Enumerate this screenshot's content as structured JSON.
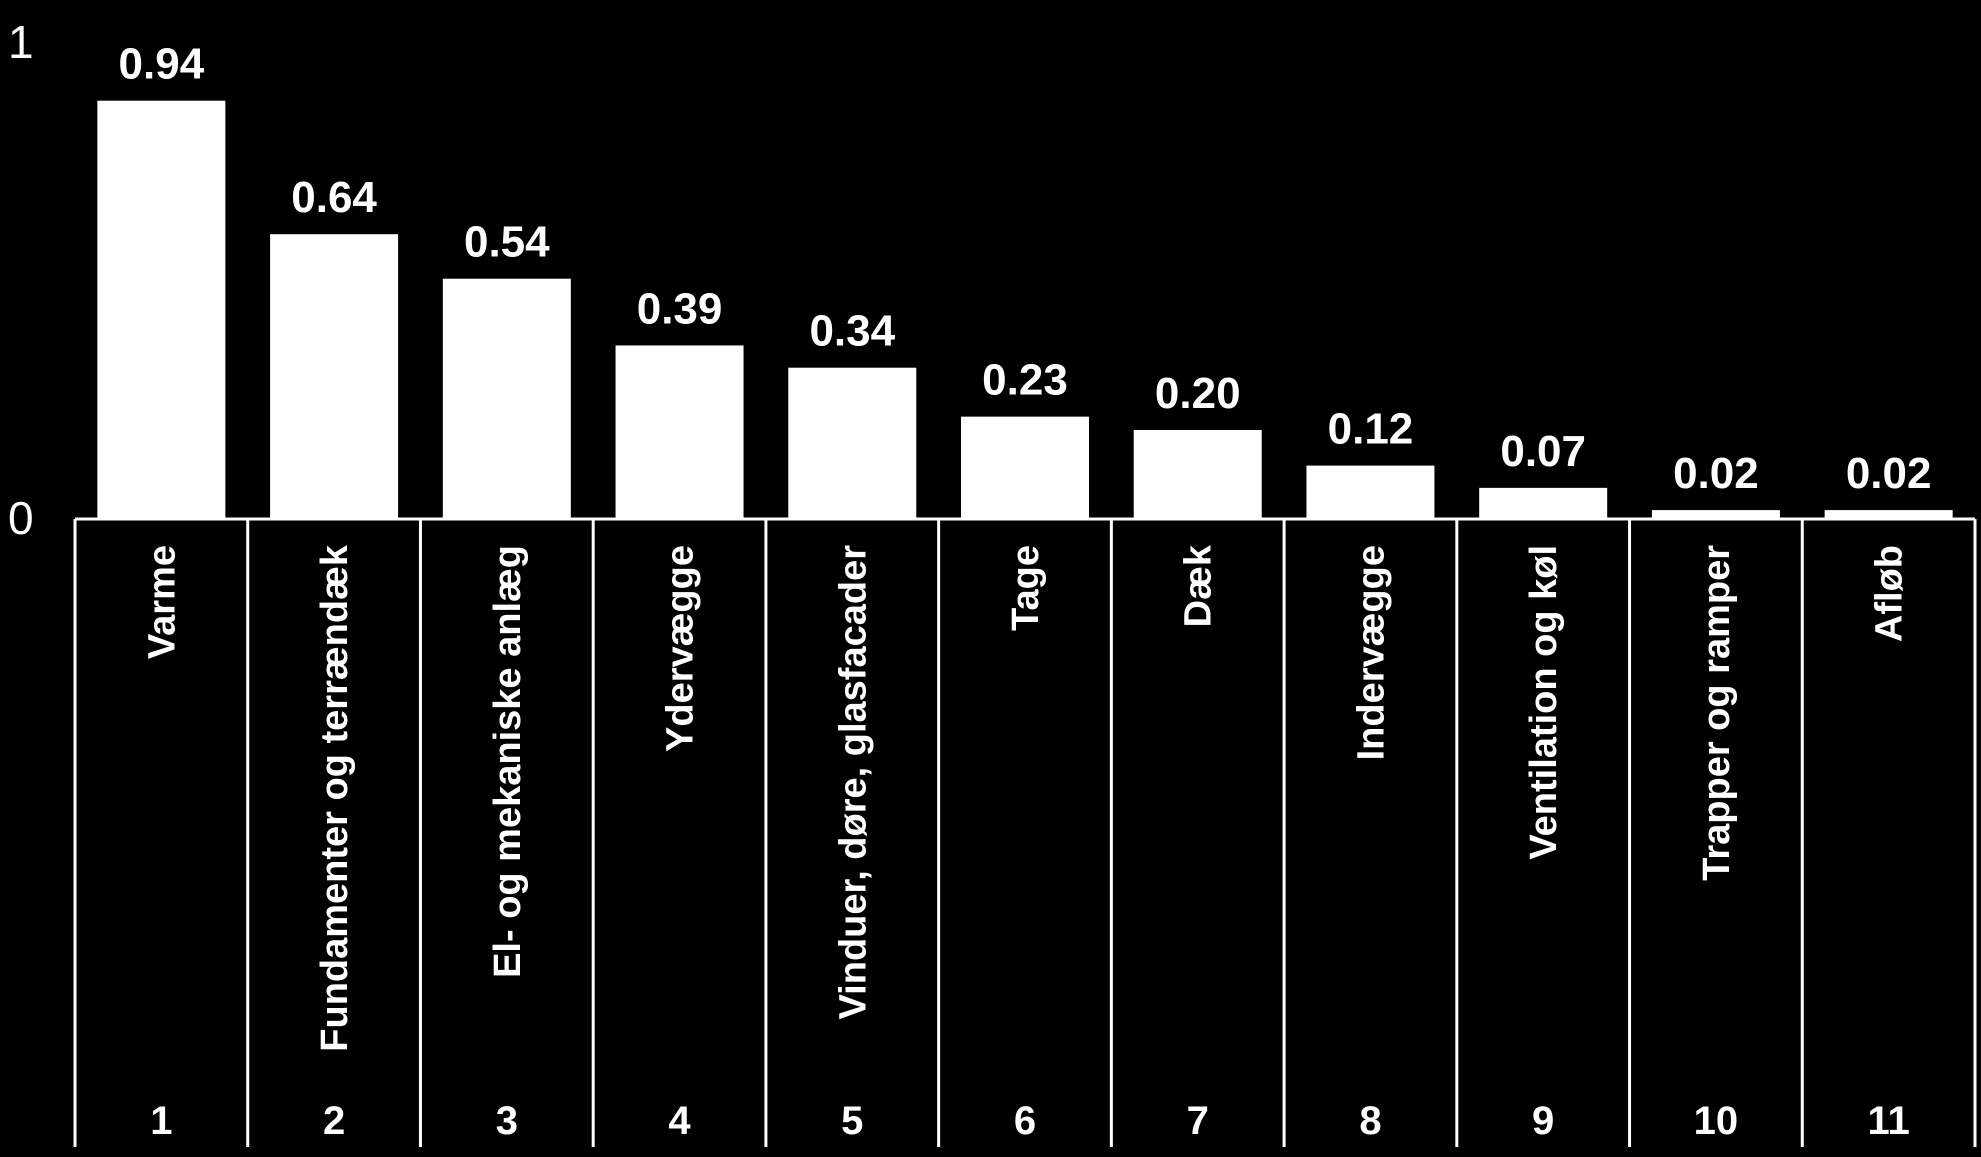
{
  "chart_data": {
    "type": "bar",
    "categories": [
      "Varme",
      "Fundamenter og terrændæk",
      "El- og mekaniske anlæg",
      "Ydervægge",
      "Vinduer, døre, glasfacader",
      "Tage",
      "Dæk",
      "Indervægge",
      "Ventilation og køl",
      "Trapper og ramper",
      "Afløb"
    ],
    "values": [
      0.94,
      0.64,
      0.54,
      0.39,
      0.34,
      0.23,
      0.2,
      0.12,
      0.07,
      0.02,
      0.02
    ],
    "data_labels": [
      "0.94",
      "0.64",
      "0.54",
      "0.39",
      "0.34",
      "0.23",
      "0.20",
      "0.12",
      "0.07",
      "0.02",
      "0.02"
    ],
    "ranks": [
      "1",
      "2",
      "3",
      "4",
      "5",
      "6",
      "7",
      "8",
      "9",
      "10",
      "11"
    ],
    "y_ticks": [
      "0",
      "1"
    ],
    "ylim": [
      0,
      1
    ],
    "grid": false,
    "title": "",
    "xlabel": "",
    "ylabel": "",
    "colors": {
      "background": "#000000",
      "bar": "#ffffff",
      "text": "#ffffff",
      "lines": "#ffffff"
    }
  }
}
